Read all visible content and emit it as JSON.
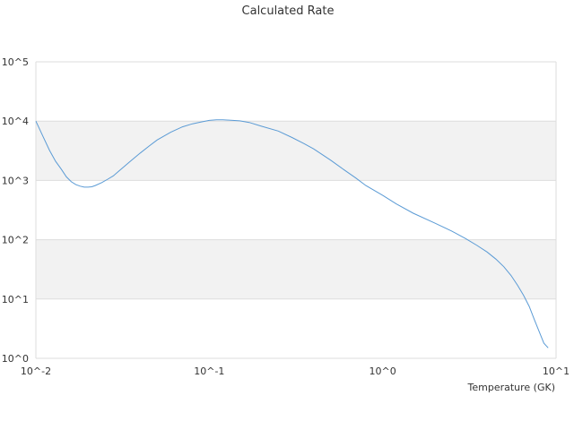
{
  "chart_data": {
    "type": "line",
    "title": "Calculated Rate",
    "xlabel": "Temperature (GK)",
    "ylabel": "",
    "x_scale": "log",
    "y_scale": "log",
    "xlim": [
      0.01,
      10
    ],
    "ylim": [
      1,
      100000
    ],
    "x_tick_labels": [
      "10^-2",
      "10^-1",
      "10^0",
      "10^1"
    ],
    "y_tick_labels": [
      "10^0",
      "10^1",
      "10^2",
      "10^3",
      "10^4",
      "10^5"
    ],
    "alternate_band_fill": "#f2f2f2",
    "gridline_color": "#dddddd",
    "series": [
      {
        "color": "#5b9bd5",
        "x": [
          0.01,
          0.011,
          0.012,
          0.013,
          0.014,
          0.015,
          0.016,
          0.017,
          0.018,
          0.019,
          0.02,
          0.021,
          0.022,
          0.024,
          0.026,
          0.028,
          0.03,
          0.035,
          0.04,
          0.045,
          0.05,
          0.06,
          0.07,
          0.08,
          0.09,
          0.1,
          0.11,
          0.12,
          0.13,
          0.15,
          0.17,
          0.2,
          0.25,
          0.3,
          0.35,
          0.4,
          0.5,
          0.6,
          0.7,
          0.8,
          1.0,
          1.2,
          1.5,
          2.0,
          2.5,
          3.0,
          3.5,
          4.0,
          4.5,
          5.0,
          5.5,
          6.0,
          6.5,
          7.0,
          7.5,
          8.0,
          8.5,
          9.0
        ],
        "y": [
          10000,
          5500,
          3200,
          2100,
          1550,
          1150,
          950,
          850,
          800,
          770,
          770,
          780,
          820,
          920,
          1050,
          1200,
          1420,
          2100,
          2900,
          3800,
          4800,
          6500,
          8000,
          9000,
          9700,
          10300,
          10500,
          10500,
          10400,
          10100,
          9500,
          8200,
          6800,
          5300,
          4200,
          3400,
          2200,
          1500,
          1100,
          820,
          560,
          400,
          280,
          190,
          140,
          105,
          80,
          62,
          47,
          35,
          25,
          17,
          11.5,
          7.5,
          4.5,
          2.8,
          1.8,
          1.5
        ]
      }
    ]
  }
}
